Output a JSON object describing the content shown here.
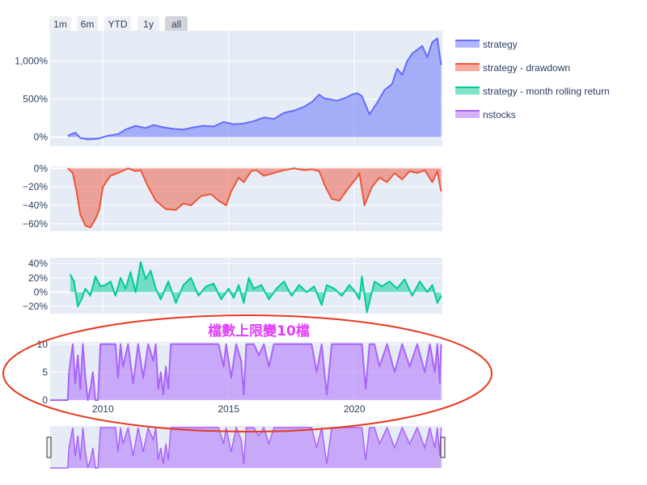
{
  "range_selector": {
    "buttons": [
      "1m",
      "6m",
      "YTD",
      "1y",
      "all"
    ],
    "active": "all"
  },
  "annotation": "檔數上限變10檔",
  "colors": {
    "strategy": "#636efa",
    "drawdown": "#ef553b",
    "rolling": "#00cc96",
    "nstocks": "#ab63fa",
    "annotation_text": "#e040fb",
    "ellipse": "#e8381f",
    "plot_bg": "#e5ecf6"
  },
  "chart_data": {
    "type": "area",
    "x_range": [
      2007.9,
      2023.5
    ],
    "x_ticks": [
      "2010",
      "2015",
      "2020"
    ],
    "x_tick_values": [
      2010,
      2015,
      2020
    ],
    "legend": {
      "placement": "top-right",
      "entries": [
        "strategy",
        "strategy - drawdown",
        "strategy - month rolling return",
        "nstocks"
      ]
    },
    "subplots": [
      {
        "name": "strategy",
        "type": "area",
        "y_ticks": [
          "1,000%",
          "500%",
          "0%"
        ],
        "y_tick_values": [
          1000,
          500,
          0
        ],
        "ylim": [
          -120,
          1400
        ],
        "series": {
          "name": "strategy",
          "x": [
            2008.6,
            2008.9,
            2009.1,
            2009.4,
            2009.8,
            2010.2,
            2010.6,
            2010.9,
            2011.3,
            2011.7,
            2012.0,
            2012.4,
            2012.8,
            2013.2,
            2013.6,
            2014.0,
            2014.4,
            2014.8,
            2015.2,
            2015.6,
            2016.0,
            2016.4,
            2016.8,
            2017.2,
            2017.6,
            2018.0,
            2018.3,
            2018.6,
            2018.8,
            2019.0,
            2019.3,
            2019.6,
            2019.9,
            2020.1,
            2020.3,
            2020.6,
            2020.9,
            2021.2,
            2021.5,
            2021.7,
            2021.9,
            2022.1,
            2022.3,
            2022.5,
            2022.7,
            2022.9,
            2023.1,
            2023.3,
            2023.45
          ],
          "y": [
            20,
            60,
            -10,
            -30,
            -20,
            20,
            40,
            100,
            150,
            120,
            160,
            130,
            110,
            100,
            130,
            150,
            140,
            200,
            170,
            180,
            210,
            260,
            240,
            320,
            350,
            400,
            460,
            560,
            510,
            500,
            480,
            510,
            560,
            580,
            540,
            300,
            450,
            620,
            700,
            900,
            820,
            1000,
            1100,
            1150,
            1200,
            1050,
            1250,
            1300,
            950
          ]
        }
      },
      {
        "name": "strategy - drawdown",
        "type": "area",
        "y_ticks": [
          "0%",
          "−20%",
          "−40%",
          "−60%"
        ],
        "y_tick_values": [
          0,
          -20,
          -40,
          -60
        ],
        "ylim": [
          -68,
          2
        ],
        "series": {
          "name": "strategy - drawdown",
          "x": [
            2008.6,
            2008.8,
            2008.95,
            2009.1,
            2009.3,
            2009.5,
            2009.7,
            2009.85,
            2010.0,
            2010.3,
            2010.6,
            2011.0,
            2011.3,
            2011.5,
            2011.8,
            2012.1,
            2012.5,
            2012.9,
            2013.2,
            2013.5,
            2013.9,
            2014.3,
            2014.6,
            2014.9,
            2015.1,
            2015.4,
            2015.6,
            2015.9,
            2016.1,
            2016.4,
            2016.8,
            2017.2,
            2017.6,
            2018.0,
            2018.3,
            2018.6,
            2018.85,
            2019.1,
            2019.4,
            2019.8,
            2020.1,
            2020.2,
            2020.4,
            2020.7,
            2021.0,
            2021.3,
            2021.6,
            2021.9,
            2022.2,
            2022.5,
            2022.8,
            2023.1,
            2023.3,
            2023.45
          ],
          "y": [
            0,
            -5,
            -25,
            -50,
            -62,
            -64,
            -55,
            -45,
            -20,
            -8,
            -5,
            0,
            -3,
            -2,
            -20,
            -35,
            -44,
            -45,
            -38,
            -40,
            -30,
            -28,
            -35,
            -40,
            -25,
            -10,
            -15,
            -3,
            -2,
            -8,
            -5,
            -2,
            0,
            -2,
            -1,
            -3,
            -20,
            -33,
            -35,
            -20,
            -10,
            -5,
            -40,
            -20,
            -10,
            -15,
            -5,
            -12,
            -3,
            -5,
            -2,
            -15,
            -3,
            -25
          ]
        }
      },
      {
        "name": "strategy - month rolling return",
        "type": "area",
        "y_ticks": [
          "40%",
          "20%",
          "0%",
          "−20%"
        ],
        "y_tick_values": [
          40,
          20,
          0,
          -20
        ],
        "ylim": [
          -30,
          48
        ],
        "series": {
          "name": "strategy - month rolling return",
          "x": [
            2008.7,
            2008.85,
            2009.0,
            2009.15,
            2009.3,
            2009.5,
            2009.7,
            2009.9,
            2010.1,
            2010.3,
            2010.5,
            2010.7,
            2010.9,
            2011.1,
            2011.3,
            2011.5,
            2011.7,
            2011.9,
            2012.1,
            2012.3,
            2012.6,
            2012.9,
            2013.2,
            2013.5,
            2013.8,
            2014.1,
            2014.4,
            2014.7,
            2015.0,
            2015.2,
            2015.4,
            2015.6,
            2015.8,
            2016.0,
            2016.3,
            2016.6,
            2016.9,
            2017.2,
            2017.5,
            2017.8,
            2018.1,
            2018.4,
            2018.7,
            2018.9,
            2019.2,
            2019.5,
            2019.8,
            2020.0,
            2020.2,
            2020.3,
            2020.5,
            2020.8,
            2021.1,
            2021.4,
            2021.7,
            2022.0,
            2022.3,
            2022.6,
            2022.9,
            2023.1,
            2023.3,
            2023.45
          ],
          "y": [
            25,
            15,
            -20,
            -10,
            5,
            -5,
            22,
            8,
            10,
            15,
            -5,
            20,
            5,
            28,
            0,
            42,
            18,
            30,
            5,
            -10,
            15,
            -15,
            10,
            20,
            -5,
            8,
            12,
            -10,
            5,
            -8,
            10,
            -15,
            20,
            5,
            10,
            -10,
            5,
            15,
            -5,
            10,
            0,
            8,
            -18,
            10,
            5,
            -5,
            10,
            2,
            -10,
            22,
            -28,
            15,
            8,
            15,
            5,
            18,
            -5,
            15,
            0,
            10,
            -15,
            -5
          ]
        }
      },
      {
        "name": "nstocks",
        "type": "area",
        "y_ticks": [
          "10",
          "5",
          "0"
        ],
        "y_tick_values": [
          10,
          5,
          0
        ],
        "ylim": [
          0,
          10.4
        ],
        "series": {
          "name": "nstocks",
          "x": [
            2007.9,
            2008.6,
            2008.65,
            2008.8,
            2008.9,
            2009.0,
            2009.1,
            2009.2,
            2009.3,
            2009.4,
            2009.5,
            2009.6,
            2009.7,
            2009.8,
            2009.9,
            2010.5,
            2010.6,
            2010.7,
            2010.8,
            2011.0,
            2011.2,
            2011.4,
            2011.6,
            2011.8,
            2012.0,
            2012.1,
            2012.2,
            2012.3,
            2012.4,
            2012.5,
            2012.6,
            2012.7,
            2012.8,
            2013.0,
            2013.5,
            2014.0,
            2014.6,
            2014.8,
            2014.9,
            2015.1,
            2015.3,
            2015.5,
            2015.6,
            2015.7,
            2015.8,
            2016.0,
            2016.2,
            2016.4,
            2016.6,
            2016.8,
            2017.0,
            2017.5,
            2018.0,
            2018.3,
            2018.5,
            2018.7,
            2018.9,
            2019.1,
            2019.3,
            2019.8,
            2020.0,
            2020.2,
            2020.3,
            2020.45,
            2020.6,
            2020.8,
            2021.0,
            2021.3,
            2021.6,
            2021.9,
            2022.2,
            2022.5,
            2022.8,
            2023.0,
            2023.2,
            2023.3,
            2023.4,
            2023.45
          ],
          "y": [
            0,
            0,
            5,
            10,
            3,
            8,
            2,
            10,
            4,
            0,
            2,
            5,
            0,
            0,
            10,
            10,
            4,
            10,
            6,
            10,
            3,
            10,
            4,
            10,
            7,
            10,
            2,
            5,
            1,
            6,
            2,
            10,
            10,
            10,
            10,
            10,
            10,
            6,
            10,
            4,
            10,
            7,
            1,
            10,
            10,
            10,
            8,
            10,
            6,
            10,
            10,
            10,
            10,
            10,
            5,
            10,
            1,
            10,
            10,
            10,
            10,
            10,
            10,
            2,
            10,
            10,
            6,
            10,
            5,
            10,
            6,
            10,
            5,
            10,
            5,
            10,
            3,
            10
          ]
        }
      }
    ]
  }
}
